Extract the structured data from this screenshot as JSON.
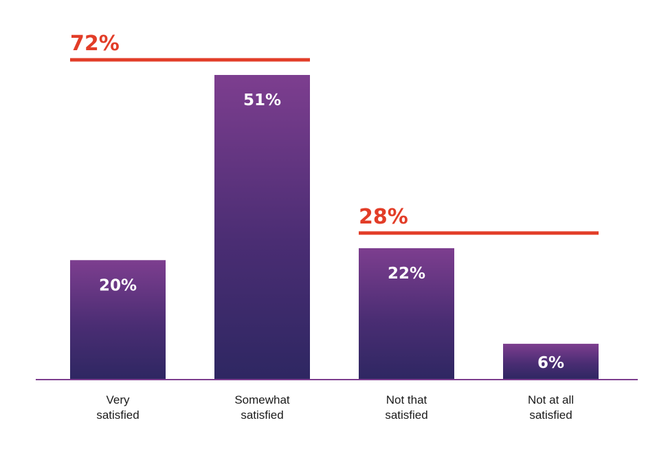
{
  "chart_data": {
    "type": "bar",
    "title": "",
    "xlabel": "",
    "ylabel": "",
    "ylim": [
      0,
      51
    ],
    "grid": false,
    "categories": [
      "Very satisfied",
      "Somewhat satisfied",
      "Not that satisfied",
      "Not at all satisfied"
    ],
    "category_lines": [
      [
        "Very",
        "satisfied"
      ],
      [
        "Somewhat",
        "satisfied"
      ],
      [
        "Not that",
        "satisfied"
      ],
      [
        "Not at all",
        "satisfied"
      ]
    ],
    "values": [
      20,
      51,
      22,
      6
    ],
    "data_labels": [
      "20%",
      "51%",
      "22%",
      "6%"
    ],
    "groups": [
      {
        "label": "72%",
        "value": 72,
        "categories": [
          0,
          1
        ]
      },
      {
        "label": "28%",
        "value": 28,
        "categories": [
          2,
          3
        ]
      }
    ],
    "colors": {
      "bar_top": "#7d3e8f",
      "bar_mid": "#4a2d73",
      "bar_bottom": "#2e2762",
      "group": "#e23d28",
      "axis": "#7d3e8f",
      "bar_text": "#ffffff",
      "category_text": "#1a1a1a"
    }
  }
}
